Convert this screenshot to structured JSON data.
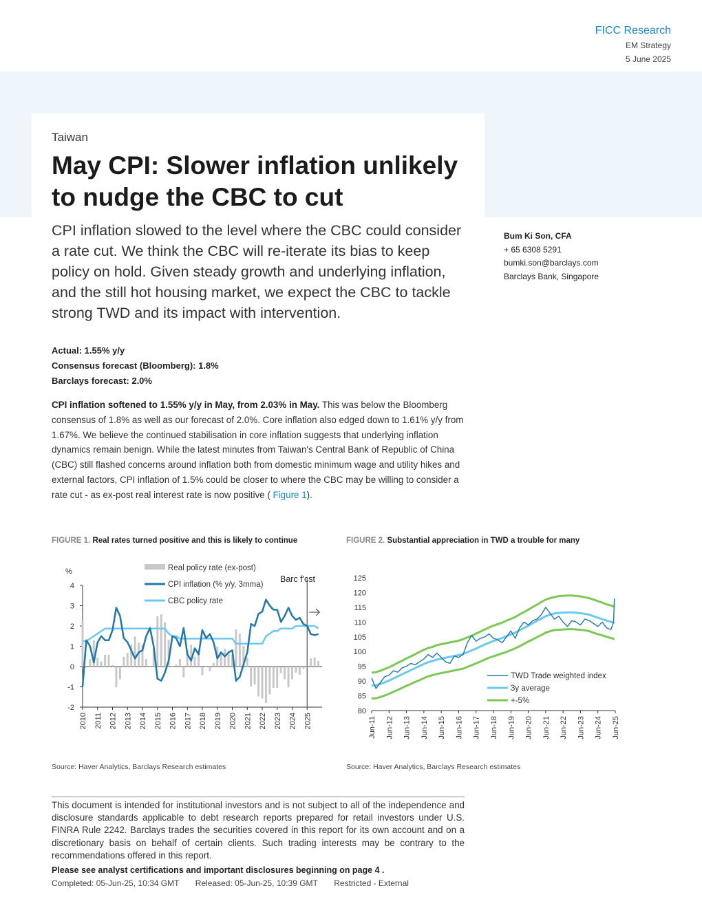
{
  "header": {
    "brand": "FICC Research",
    "team": "EM Strategy",
    "date": "5 June 2025"
  },
  "kicker": "Taiwan",
  "title": "May CPI: Slower inflation unlikely to nudge the CBC to cut",
  "lede": "CPI inflation slowed to the level where the CBC could consider a rate cut. We think the CBC will re-iterate its bias to keep policy on hold. Given steady growth and underlying inflation, and the still hot housing market, we expect the CBC to tackle strong TWD and its impact with intervention.",
  "author": {
    "name": "Bum Ki Son, CFA",
    "phone": "+ 65 6308 5291",
    "email": "bumki.son@barclays.com",
    "org": "Barclays Bank, Singapore"
  },
  "facts": {
    "actual": "Actual: 1.55% y/y",
    "consensus": "Consensus forecast (Bloomberg): 1.8%",
    "barclays": "Barclays forecast: 2.0%"
  },
  "body": {
    "lead_bold": "CPI inflation softened to 1.55% y/y in May, from 2.03% in May.",
    "text": " This was below the Bloomberg consensus of 1.8% as well as our forecast of 2.0%. Core inflation also edged down to 1.61% y/y from 1.67%.  We believe the continued stabilisation in core inflation suggests that underlying inflation dynamics remain benign. While the latest minutes from Taiwan's Central Bank of Republic of China (CBC) still flashed concerns around inflation both from domestic minimum wage and utility hikes and external factors, CPI inflation of 1.5% could be closer to where the CBC may be willing to consider a rate cut - as ex-post real interest rate is now positive ( ",
    "fig_ref": "Figure 1",
    "tail": ")."
  },
  "figure1": {
    "label": "FIGURE 1.",
    "title": "Real rates turned positive and this is likely to continue",
    "source": "Source: Haver Analytics, Barclays Research estimates"
  },
  "figure2": {
    "label": "FIGURE 2.",
    "title": "Substantial appreciation in TWD a trouble for many",
    "source": "Source: Haver Analytics, Barclays Research estimates"
  },
  "disclaimer": "This document is intended for institutional investors and is not subject to all of the independence and disclosure standards applicable to debt research reports prepared for retail investors under U.S. FINRA Rule 2242. Barclays trades the securities covered in this report for its own account and on a discretionary basis on behalf of certain clients. Such trading interests may be contrary to the recommendations offered in this report.",
  "see_disclosures": "Please see analyst certifications and important disclosures beginning on page 4 .",
  "footer": {
    "completed": "Completed: 05-Jun-25, 10:34 GMT",
    "released": "Released: 05-Jun-25, 10:39 GMT",
    "classification": "Restricted - External"
  },
  "colors": {
    "accent": "#1a8ac4",
    "band": "#eef6fc",
    "cpi": "#1f78a8",
    "policy": "#6cc8ee",
    "real": "#c8c8c8",
    "avg": "#6cc8ee",
    "band_line": "#7cc855"
  },
  "chart_data": [
    {
      "type": "line",
      "ylabel": "%",
      "ylim": [
        -2,
        4
      ],
      "yticks": [
        "-2",
        "-1",
        "0",
        "1",
        "2",
        "3",
        "4"
      ],
      "xticks": [
        "2010",
        "2011",
        "2012",
        "2013",
        "2014",
        "2015",
        "2016",
        "2017",
        "2018",
        "2019",
        "2020",
        "2021",
        "2022",
        "2023",
        "2024",
        "2025"
      ],
      "annotation": "Barc f'cst",
      "legend": [
        "Real policy rate (ex-post)",
        "CPI inflation (% y/y, 3mma)",
        "CBC policy rate"
      ],
      "x": [
        2010.0,
        2010.25,
        2010.5,
        2010.75,
        2011.0,
        2011.25,
        2011.5,
        2011.75,
        2012.0,
        2012.25,
        2012.5,
        2012.75,
        2013.0,
        2013.25,
        2013.5,
        2013.75,
        2014.0,
        2014.25,
        2014.5,
        2014.75,
        2015.0,
        2015.25,
        2015.5,
        2015.75,
        2016.0,
        2016.25,
        2016.5,
        2016.75,
        2017.0,
        2017.25,
        2017.5,
        2017.75,
        2018.0,
        2018.25,
        2018.5,
        2018.75,
        2019.0,
        2019.25,
        2019.5,
        2019.75,
        2020.0,
        2020.25,
        2020.5,
        2020.75,
        2021.0,
        2021.25,
        2021.5,
        2021.75,
        2022.0,
        2022.25,
        2022.5,
        2022.75,
        2023.0,
        2023.25,
        2023.5,
        2023.75,
        2024.0,
        2024.25,
        2024.5,
        2024.75,
        2025.0,
        2025.25,
        2025.5,
        2025.75
      ],
      "series": [
        {
          "name": "CPI inflation (% y/y, 3mma)",
          "values": [
            -1.0,
            1.3,
            1.0,
            0.2,
            1.2,
            1.5,
            1.3,
            1.3,
            1.8,
            2.9,
            2.5,
            1.4,
            1.2,
            0.8,
            0.4,
            0.7,
            0.8,
            1.5,
            1.9,
            1.0,
            -0.6,
            -0.7,
            -0.3,
            0.3,
            1.5,
            1.4,
            1.0,
            1.9,
            0.6,
            0.3,
            0.9,
            0.6,
            1.8,
            1.4,
            1.6,
            1.2,
            0.4,
            0.7,
            0.5,
            0.7,
            0.8,
            -0.7,
            -0.5,
            0.1,
            0.7,
            2.1,
            2.0,
            2.6,
            2.7,
            3.3,
            3.0,
            2.8,
            2.8,
            2.2,
            2.5,
            2.9,
            2.5,
            2.3,
            2.4,
            2.1,
            2.0,
            1.6,
            1.55,
            1.6
          ]
        },
        {
          "name": "CBC policy rate",
          "values": [
            1.25,
            1.25,
            1.375,
            1.5,
            1.625,
            1.75,
            1.875,
            1.875,
            1.875,
            1.875,
            1.875,
            1.875,
            1.875,
            1.875,
            1.875,
            1.875,
            1.875,
            1.875,
            1.875,
            1.875,
            1.875,
            1.875,
            1.875,
            1.625,
            1.5,
            1.5,
            1.375,
            1.375,
            1.375,
            1.375,
            1.375,
            1.375,
            1.375,
            1.375,
            1.375,
            1.375,
            1.375,
            1.375,
            1.375,
            1.375,
            1.375,
            1.125,
            1.125,
            1.125,
            1.125,
            1.125,
            1.125,
            1.125,
            1.125,
            1.5,
            1.625,
            1.75,
            1.75,
            1.875,
            1.875,
            1.875,
            1.875,
            2.0,
            2.0,
            2.0,
            2.0,
            2.0,
            2.0,
            1.875
          ]
        },
        {
          "name": "Real policy rate (ex-post)",
          "values": [
            2.25,
            -0.05,
            0.375,
            1.3,
            0.425,
            0.25,
            0.575,
            0.575,
            0.075,
            -1.025,
            -0.625,
            0.475,
            0.675,
            1.075,
            1.475,
            1.175,
            1.075,
            0.375,
            -0.025,
            0.875,
            2.475,
            2.575,
            2.175,
            1.325,
            0.0,
            0.1,
            0.375,
            -0.525,
            0.775,
            1.075,
            0.475,
            0.775,
            -0.425,
            -0.025,
            -0.225,
            0.175,
            0.975,
            0.675,
            0.875,
            0.675,
            0.575,
            1.825,
            1.625,
            1.025,
            0.425,
            -0.975,
            -0.875,
            -1.475,
            -1.575,
            -1.8,
            -1.375,
            -1.05,
            -1.05,
            -0.325,
            -0.625,
            -1.025,
            -0.625,
            -0.3,
            -0.4,
            -0.1,
            0.0,
            0.4,
            0.45,
            0.275
          ]
        }
      ]
    },
    {
      "type": "line",
      "ylim": [
        80,
        125
      ],
      "yticks": [
        "80",
        "85",
        "90",
        "95",
        "100",
        "105",
        "110",
        "115",
        "120",
        "125"
      ],
      "xticks": [
        "Jun-11",
        "Jun-12",
        "Jun-13",
        "Jun-14",
        "Jun-15",
        "Jun-16",
        "Jun-17",
        "Jun-18",
        "Jun-19",
        "Jun-20",
        "Jun-21",
        "Jun-22",
        "Jun-23",
        "Jun-24",
        "Jun-25"
      ],
      "legend": [
        "TWD Trade weighted index",
        "3y average",
        "+-5%"
      ],
      "x": [
        2011.5,
        2011.75,
        2012.0,
        2012.25,
        2012.5,
        2012.75,
        2013.0,
        2013.25,
        2013.5,
        2013.75,
        2014.0,
        2014.25,
        2014.5,
        2014.75,
        2015.0,
        2015.25,
        2015.5,
        2015.75,
        2016.0,
        2016.25,
        2016.5,
        2016.75,
        2017.0,
        2017.25,
        2017.5,
        2017.75,
        2018.0,
        2018.25,
        2018.5,
        2018.75,
        2019.0,
        2019.25,
        2019.5,
        2019.75,
        2020.0,
        2020.25,
        2020.5,
        2020.75,
        2021.0,
        2021.25,
        2021.5,
        2021.75,
        2022.0,
        2022.25,
        2022.5,
        2022.75,
        2023.0,
        2023.25,
        2023.5,
        2023.75,
        2024.0,
        2024.25,
        2024.5,
        2024.75,
        2025.0,
        2025.25,
        2025.4,
        2025.45
      ],
      "series": [
        {
          "name": "TWD Trade weighted index",
          "values": [
            91,
            87.5,
            89.5,
            91.5,
            92,
            93.5,
            93,
            94.5,
            95,
            96,
            95.5,
            96.5,
            97.5,
            99,
            98,
            99.5,
            98,
            96.5,
            96,
            98.5,
            98,
            99,
            103,
            105.5,
            103.5,
            104.5,
            105,
            106,
            104.5,
            104,
            103,
            105,
            107,
            104.5,
            108,
            110,
            109,
            110.5,
            111,
            112.5,
            115,
            113,
            111,
            112,
            110,
            108.5,
            110.5,
            110,
            109,
            111,
            110.5,
            109.5,
            108.5,
            110,
            108,
            107.5,
            110,
            118
          ]
        },
        {
          "name": "3y average",
          "values": [
            88.5,
            88.6,
            89,
            89.6,
            90.2,
            90.9,
            91.6,
            92.3,
            93,
            93.7,
            94.4,
            95.1,
            95.8,
            96.4,
            96.8,
            97.3,
            97.6,
            97.9,
            98.2,
            98.5,
            98.8,
            99.2,
            99.8,
            100.4,
            101,
            101.7,
            102.4,
            103,
            103.6,
            104.1,
            104.6,
            105.2,
            105.8,
            106.4,
            107.2,
            108,
            108.8,
            109.6,
            110.4,
            111.2,
            112,
            112.5,
            112.9,
            113.1,
            113.2,
            113.3,
            113.3,
            113.2,
            113,
            112.8,
            112.5,
            112,
            111.5,
            111,
            110.5,
            110.1,
            109.8,
            109.7
          ]
        },
        {
          "name": "+5%",
          "values": [
            92.9,
            93,
            93.5,
            94.1,
            94.7,
            95.4,
            96.2,
            96.9,
            97.7,
            98.4,
            99.1,
            99.9,
            100.6,
            101.2,
            101.6,
            102.2,
            102.5,
            102.8,
            103.1,
            103.4,
            103.7,
            104.2,
            104.8,
            105.4,
            106.1,
            106.8,
            107.5,
            108.2,
            108.8,
            109.3,
            109.8,
            110.5,
            111.1,
            111.7,
            112.6,
            113.4,
            114.2,
            115.1,
            115.9,
            116.8,
            117.6,
            118.1,
            118.5,
            118.8,
            118.9,
            119,
            119,
            118.9,
            118.7,
            118.4,
            118.1,
            117.6,
            117.1,
            116.6,
            116,
            115.6,
            115.3,
            115.2
          ]
        },
        {
          "name": "-5%",
          "values": [
            84.1,
            84.2,
            84.6,
            85.1,
            85.7,
            86.4,
            87,
            87.7,
            88.4,
            89,
            89.7,
            90.3,
            91,
            91.6,
            92,
            92.4,
            92.7,
            93,
            93.3,
            93.6,
            93.9,
            94.2,
            94.8,
            95.4,
            96,
            96.6,
            97.3,
            97.9,
            98.4,
            98.9,
            99.4,
            99.9,
            100.5,
            101.1,
            101.8,
            102.6,
            103.4,
            104.1,
            104.9,
            105.6,
            106.4,
            106.9,
            107.3,
            107.4,
            107.5,
            107.6,
            107.6,
            107.5,
            107.4,
            107.2,
            106.9,
            106.4,
            105.9,
            105.5,
            105,
            104.6,
            104.3,
            104.2
          ]
        }
      ]
    }
  ]
}
